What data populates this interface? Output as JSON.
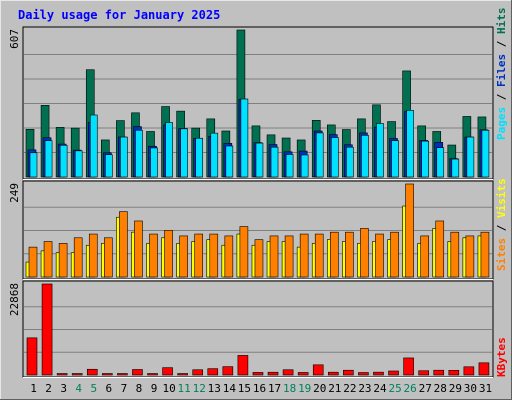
{
  "chart_data": {
    "type": "bar",
    "title": "Daily usage for January 2025",
    "categories": [
      "1",
      "2",
      "3",
      "4",
      "5",
      "6",
      "7",
      "8",
      "9",
      "10",
      "11",
      "12",
      "13",
      "14",
      "15",
      "16",
      "17",
      "18",
      "19",
      "20",
      "21",
      "22",
      "23",
      "24",
      "25",
      "26",
      "27",
      "28",
      "29",
      "30",
      "31"
    ],
    "weekend_days": [
      "4",
      "5",
      "11",
      "12",
      "18",
      "19",
      "25",
      "26"
    ],
    "panels": [
      {
        "name": "hits-panel",
        "scale_label": "607",
        "ymax": 607,
        "legend": [
          "Pages",
          "Files",
          "Hits"
        ],
        "series": [
          {
            "name": "Hits",
            "color": "#007050",
            "values": [
              197,
              296,
              205,
              202,
              443,
              153,
              233,
              265,
              188,
              291,
              272,
              202,
              240,
              190,
              607,
              211,
              174,
              161,
              153,
              234,
              215,
              196,
              240,
              298,
              229,
              438,
              211,
              188,
              132,
              250,
              248
            ]
          },
          {
            "name": "Files",
            "color": "#0030c0",
            "values": [
              112,
              162,
              136,
              111,
              225,
              100,
              165,
              208,
              127,
              215,
              200,
              160,
              168,
              139,
              321,
              142,
              134,
              104,
              107,
              190,
              175,
              133,
              182,
              206,
              159,
              270,
              151,
              143,
              76,
              165,
              195
            ]
          },
          {
            "name": "Pages",
            "color": "#00e0ff",
            "values": [
              100,
              150,
              131,
              108,
              256,
              92,
              165,
              193,
              120,
              225,
              199,
              160,
              181,
              128,
              322,
              140,
              123,
              93,
              91,
              182,
              163,
              123,
              172,
              221,
              150,
              275,
              148,
              121,
              74,
              165,
              193
            ]
          }
        ]
      },
      {
        "name": "visits-panel",
        "scale_label": "249",
        "ymax": 249,
        "legend": [
          "Sites",
          "Visits"
        ],
        "series": [
          {
            "name": "Visits",
            "color": "#ffff00",
            "values": [
              40,
              70,
              65,
              65,
              85,
              90,
              160,
              120,
              90,
              105,
              90,
              95,
              100,
              85,
              115,
              85,
              95,
              95,
              80,
              90,
              100,
              95,
              90,
              95,
              100,
              190,
              90,
              130,
              95,
              105,
              110
            ]
          },
          {
            "name": "Sites",
            "color": "#ff8000",
            "values": [
              80,
              95,
              90,
              105,
              115,
              105,
              175,
              150,
              115,
              125,
              110,
              115,
              115,
              110,
              135,
              100,
              110,
              110,
              115,
              115,
              120,
              120,
              130,
              115,
              120,
              249,
              110,
              150,
              120,
              110,
              120
            ]
          }
        ]
      },
      {
        "name": "kbytes-panel",
        "scale_label": "22868",
        "ymax": 22868,
        "legend": [
          "KBytes"
        ],
        "series": [
          {
            "name": "KBytes",
            "color": "#ff0000",
            "values": [
              9339,
              22868,
              121,
              92,
              1444,
              106,
              120,
              1382,
              136,
              1848,
              110,
              1320,
              1590,
              2098,
              4918,
              653,
              699,
              1316,
              639,
              2557,
              704,
              1198,
              625,
              711,
              1004,
              4284,
              1071,
              1204,
              1179,
              2066,
              3065
            ]
          }
        ]
      }
    ]
  },
  "colors": {
    "background": "#c0c0c0",
    "gridline": "#808080",
    "title": "#0000ff",
    "weekday_label": "#000000",
    "weekend_label": "#00805c",
    "legend_separator": "#000000"
  }
}
